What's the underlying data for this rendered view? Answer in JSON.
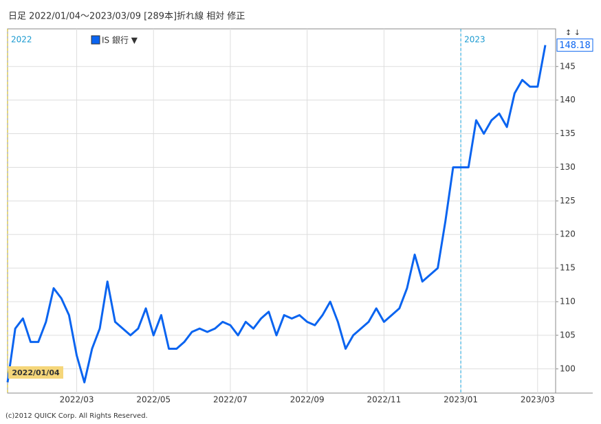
{
  "chart_data": {
    "type": "line",
    "title": "日足  2022/01/04～2023/03/09 [289本]折れ線 相対 修正",
    "legend_label": "IS 銀行 ▼",
    "year_labels": [
      "2022",
      "2023"
    ],
    "footer": "(c)2012 QUICK Corp. All Rights Reserved.",
    "categories": [
      "2022/01/04",
      null,
      null,
      null,
      null,
      null,
      null,
      null,
      null,
      "2022/03",
      null,
      null,
      null,
      null,
      null,
      null,
      null,
      null,
      null,
      "2022/05",
      null,
      null,
      null,
      null,
      null,
      null,
      null,
      null,
      null,
      "2022/07",
      null,
      null,
      null,
      null,
      null,
      null,
      null,
      null,
      null,
      "2022/09",
      null,
      null,
      null,
      null,
      null,
      null,
      null,
      null,
      null,
      "2022/11",
      null,
      null,
      null,
      null,
      null,
      null,
      null,
      null,
      null,
      "2023/01",
      null,
      null,
      null,
      null,
      null,
      null,
      null,
      null,
      null,
      "2023/03",
      null
    ],
    "series": [
      {
        "name": "IS 銀行",
        "color": "#0a64f0",
        "values": [
          98,
          106,
          107.5,
          104,
          104,
          107,
          112,
          110.5,
          108,
          102,
          98,
          103,
          106,
          113,
          107,
          106,
          105,
          106,
          109,
          105,
          108,
          103,
          103,
          104,
          105.5,
          106,
          105.5,
          106,
          107,
          106.5,
          105,
          107,
          106,
          107.5,
          108.5,
          105,
          108,
          107.5,
          108,
          107,
          106.5,
          108,
          110,
          107,
          103,
          105,
          106,
          107,
          109,
          107,
          108,
          109,
          112,
          117,
          113,
          114,
          115,
          122,
          130,
          130,
          130,
          137,
          135,
          137,
          138,
          136,
          141,
          143,
          142,
          142,
          148.18
        ]
      }
    ],
    "ylim": [
      96.4,
      150.6
    ],
    "yticks": [
      100,
      105,
      110,
      115,
      120,
      125,
      130,
      135,
      140,
      145
    ],
    "grid": true
  }
}
